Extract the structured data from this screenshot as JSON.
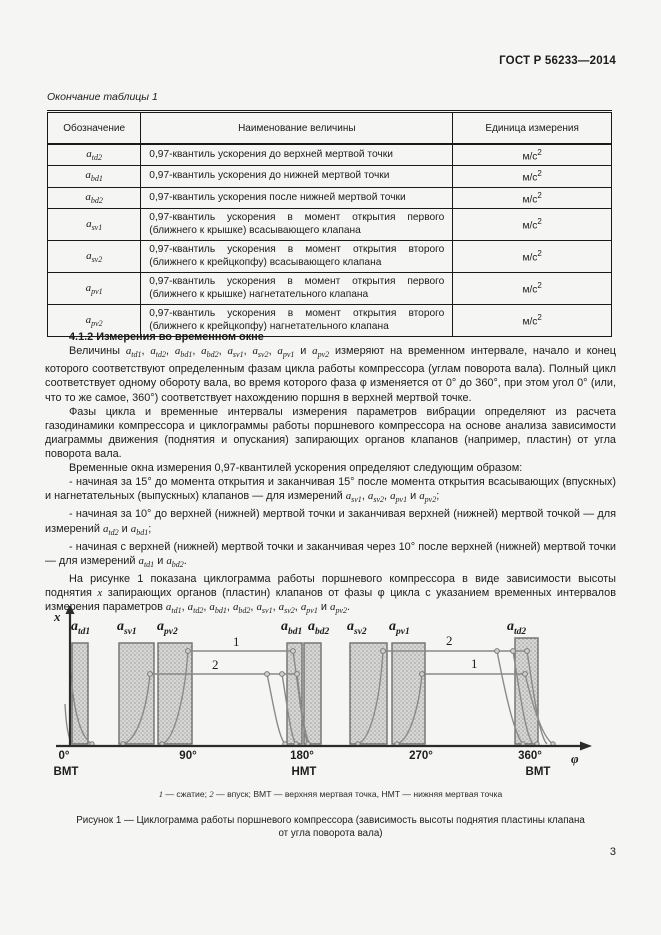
{
  "header": "ГОСТ Р 56233—2014",
  "table_caption": "Окончание таблицы 1",
  "page_number": "3",
  "table": {
    "headers": [
      "Обозначение",
      "Наименование величины",
      "Единица измерения"
    ],
    "rows": [
      {
        "symbol": "a_{td2}",
        "name": "0,97-квантиль ускорения до верхней мертвой точки",
        "unit": "м/с^{2}"
      },
      {
        "symbol": "a_{bd1}",
        "name": "0,97-квантиль ускорения до нижней мертвой точки",
        "unit": "м/с^{2}"
      },
      {
        "symbol": "a_{bd2}",
        "name": "0,97-квантиль ускорения после нижней мертвой точки",
        "unit": "м/с^{2}"
      },
      {
        "symbol": "a_{sv1}",
        "name": "0,97-квантиль ускорения в момент открытия первого (ближнего к крышке) всасывающего клапана",
        "unit": "м/с^{2}"
      },
      {
        "symbol": "a_{sv2}",
        "name": "0,97-квантиль ускорения в момент открытия второго (ближнего к крейцкопфу) всасывающего клапана",
        "unit": "м/с^{2}"
      },
      {
        "symbol": "a_{pv1}",
        "name": "0,97-квантиль ускорения в момент открытия первого (ближнего к крышке) нагнетательного клапана",
        "unit": "м/с^{2}"
      },
      {
        "symbol": "a_{pv2}",
        "name": "0,97-квантиль ускорения в момент открытия второго (ближнего к крейцкопфу) нагнетательного клапана",
        "unit": "м/с^{2}"
      }
    ]
  },
  "section": {
    "heading": "4.1.2 Измерения во временном окне",
    "paragraphs": [
      "Величины a_{td1}, a_{td2}, a_{bd1}, a_{bd2}, a_{sv1}, a_{sv2}, a_{pv1} и a_{pv2} измеряют на временном интервале, начало и конец которого соответствуют определенным фазам цикла работы компрессора (углам поворота вала). Полный цикл соответствует одному обороту вала, во время которого фаза φ изменяется от 0° до 360°, при этом угол 0° (или, что то же самое, 360°) соответствует нахождению поршня в верхней мертвой точке.",
      "Фазы цикла и временные интервалы измерения параметров вибрации определяют из расчета газодинамики компрессора и циклограммы работы поршневого компрессора на основе анализа зависимости диаграммы движения (поднятия и опускания) запирающих органов клапанов (например, пластин) от угла поворота вала.",
      "Временные окна измерения 0,97-квантилей ускорения определяют следующим образом:",
      "- начиная за 15° до момента открытия и заканчивая 15° после момента открытия всасывающих (впускных) и нагнетательных (выпускных) клапанов — для измерений a_{sv1}, a_{sv2}, a_{pv1} и a_{pv2};",
      "- начиная за 10° до верхней (нижней) мертвой точки и заканчивая верхней (нижней) мертвой точкой — для измерений a_{td2} и a_{bd1};",
      "- начиная с верхней (нижней) мертвой точки и заканчивая через 10° после верхней (нижней) мертвой точки — для измерений a_{td1} и a_{bd2}.",
      "На рисунке 1 показана циклограмма работы поршневого компрессора в виде зависимости высоты поднятия *x* запирающих органов (пластин) клапанов от фазы φ цикла с указанием временных интервалов измерения параметров a_{td1}, a_{td2}, a_{bd1}, a_{bd2}, a_{sv1}, a_{sv2}, a_{pv1} и a_{pv2}."
    ]
  },
  "figure": {
    "y_axis": "x",
    "x_axis": "φ",
    "windows": [
      "a_{td1}",
      "a_{sv1}",
      "a_{pv2}",
      "a_{bd1}",
      "a_{bd2}",
      "a_{sv2}",
      "a_{pv1}",
      "a_{td2}"
    ],
    "curve1": "1",
    "curve2": "2",
    "ticks": [
      "0°",
      "90°",
      "180°",
      "270°",
      "360°"
    ],
    "dead_centers": {
      "start": "ВМТ",
      "middle": "НМТ",
      "end": "ВМТ"
    },
    "legend": "*1* — сжатие; *2* — впуск; ВМТ — верхняя мертвая точка, НМТ — нижняя мертвая точка",
    "caption_line1": "Рисунок 1 — Циклограмма работы поршневого компрессора (зависимость высоты поднятия пластины клапана",
    "caption_line2": "от угла поворота вала)"
  }
}
